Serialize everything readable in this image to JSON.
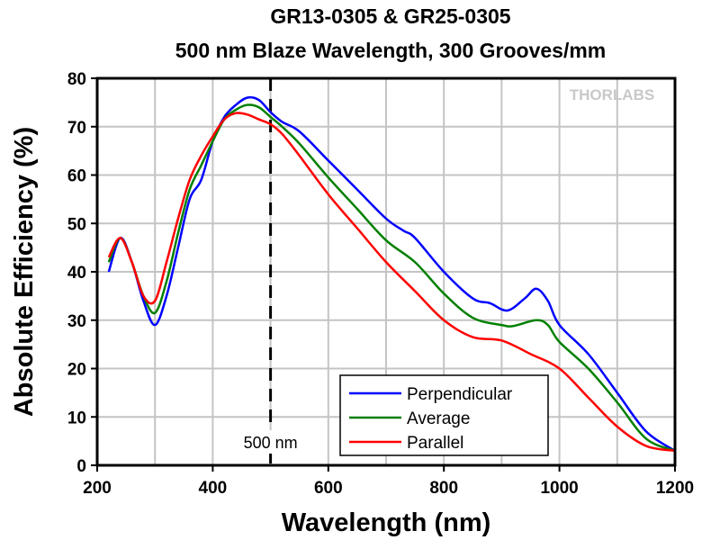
{
  "chart_data": {
    "type": "line",
    "title": "GR13-0305 & GR25-0305",
    "subtitle": "500 nm Blaze Wavelength, 300 Grooves/mm",
    "xlabel": "Wavelength (nm)",
    "ylabel": "Absolute Efficiency (%)",
    "xlim": [
      200,
      1200
    ],
    "ylim": [
      0,
      80
    ],
    "xticks": [
      200,
      400,
      600,
      800,
      1000,
      1200
    ],
    "yticks": [
      0,
      10,
      20,
      30,
      40,
      50,
      60,
      70,
      80
    ],
    "grid": true,
    "legend_placement": "bottom-center",
    "annotation": {
      "label": "500 nm",
      "x": 500,
      "style": "dashed vertical line"
    },
    "watermark": "THORLABS",
    "series": [
      {
        "name": "Perpendicular",
        "color": "#0000ff",
        "x": [
          220,
          240,
          260,
          280,
          300,
          320,
          340,
          360,
          380,
          400,
          420,
          440,
          460,
          480,
          500,
          520,
          550,
          600,
          650,
          700,
          730,
          750,
          800,
          850,
          880,
          910,
          940,
          960,
          980,
          1000,
          1050,
          1100,
          1150,
          1200
        ],
        "y": [
          40,
          47,
          42,
          34,
          29,
          35,
          45,
          55,
          59,
          67,
          72,
          74.5,
          76,
          75.5,
          73,
          71,
          69,
          63,
          57,
          51,
          48.5,
          47,
          40,
          34.5,
          33.5,
          32,
          34.5,
          36.5,
          34,
          29,
          23,
          15,
          7,
          3
        ]
      },
      {
        "name": "Average",
        "color": "#008000",
        "x": [
          220,
          240,
          260,
          280,
          300,
          320,
          340,
          360,
          380,
          400,
          420,
          440,
          460,
          480,
          500,
          520,
          550,
          600,
          650,
          700,
          750,
          800,
          850,
          900,
          920,
          960,
          980,
          1000,
          1050,
          1100,
          1150,
          1200
        ],
        "y": [
          42,
          47,
          42,
          35,
          31.5,
          38,
          48,
          57,
          62,
          67,
          71.5,
          73.5,
          74.5,
          74,
          72,
          70,
          66.5,
          59.5,
          53,
          46.5,
          42,
          35.5,
          30.5,
          29,
          28.8,
          30,
          29,
          25.5,
          20,
          13,
          5.5,
          3
        ]
      },
      {
        "name": "Parallel",
        "color": "#ff0000",
        "x": [
          220,
          240,
          260,
          280,
          300,
          320,
          340,
          360,
          380,
          400,
          420,
          440,
          460,
          480,
          500,
          520,
          550,
          600,
          650,
          700,
          750,
          800,
          850,
          900,
          950,
          1000,
          1050,
          1100,
          1150,
          1200
        ],
        "y": [
          43,
          47,
          42,
          35,
          34,
          42,
          51,
          59,
          64,
          68,
          71.5,
          72.8,
          72.5,
          71.5,
          70.5,
          68.5,
          64,
          56,
          49,
          42,
          36,
          30,
          26.5,
          25.8,
          23,
          20,
          14,
          8,
          4,
          3
        ]
      }
    ]
  }
}
